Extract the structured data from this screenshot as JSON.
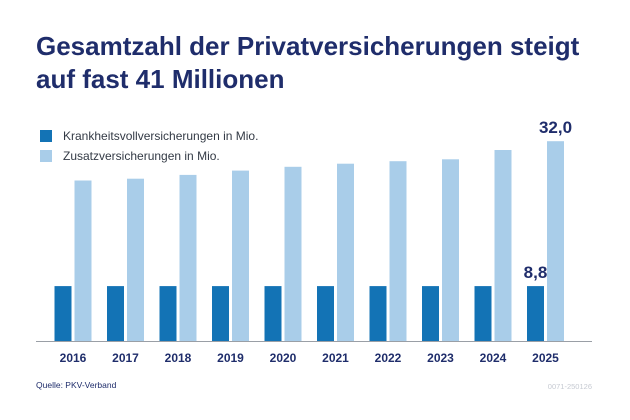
{
  "title_line1": "Gesamtzahl der Privatversicherungen steigt",
  "title_line2": "auf fast 41 Millionen",
  "source": "Quelle: PKV-Verband",
  "code": "0071-250126",
  "colors": {
    "title": "#1f2d6b",
    "dark": "#1373b5",
    "light": "#a9cde9",
    "baseline": "#9a9fa6"
  },
  "chart_data": {
    "type": "bar",
    "categories": [
      "2016",
      "2017",
      "2018",
      "2019",
      "2020",
      "2021",
      "2022",
      "2023",
      "2024",
      "2025"
    ],
    "series": [
      {
        "name": "Krankheitsvollversicherungen in Mio.",
        "values": [
          8.8,
          8.8,
          8.8,
          8.8,
          8.8,
          8.8,
          8.8,
          8.8,
          8.8,
          8.8
        ],
        "color": "#1373b5"
      },
      {
        "name": "Zusatzversicherungen in Mio.",
        "values": [
          25.7,
          26.0,
          26.6,
          27.3,
          27.9,
          28.4,
          28.8,
          29.1,
          30.6,
          32.0
        ],
        "color": "#a9cde9"
      }
    ],
    "data_labels": [
      {
        "series": 0,
        "index": 9,
        "text": "8,8"
      },
      {
        "series": 1,
        "index": 9,
        "text": "32,0"
      }
    ],
    "ylim": [
      0,
      37
    ],
    "legend": "top-left",
    "grid": false
  }
}
